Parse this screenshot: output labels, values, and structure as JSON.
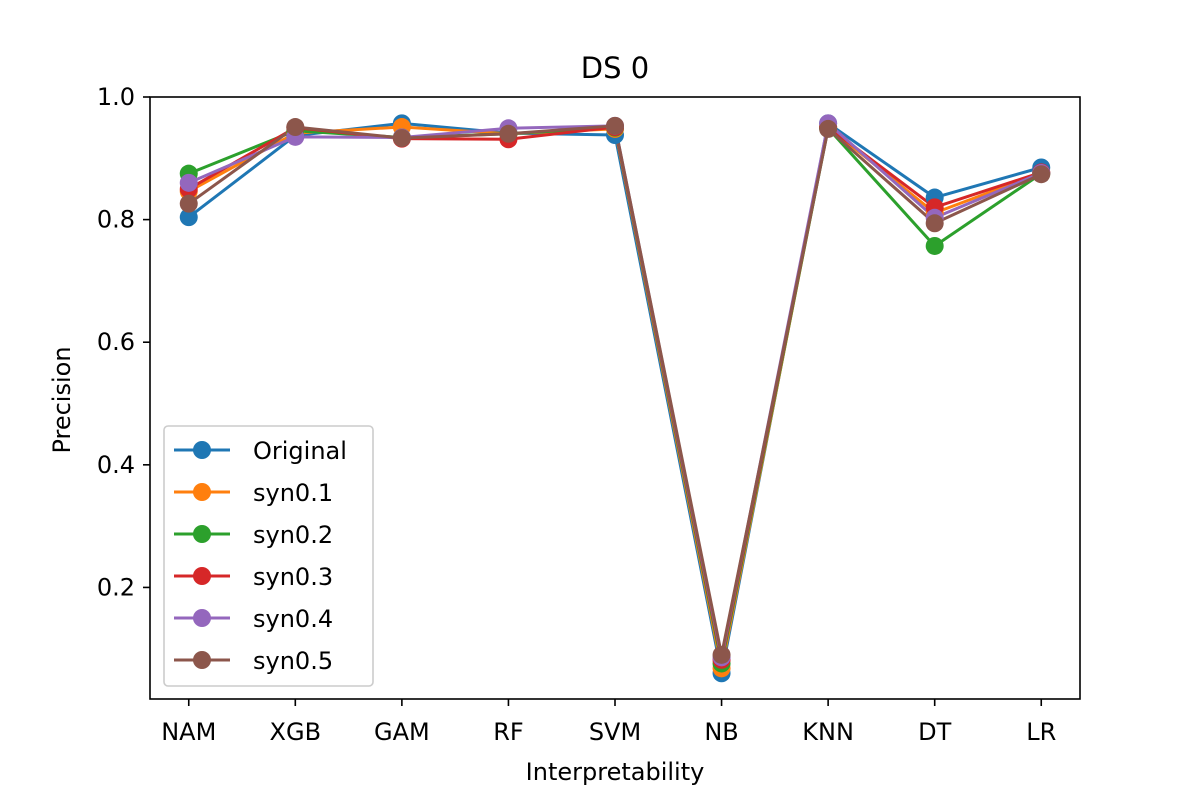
{
  "chart_data": {
    "type": "line",
    "title": "DS 0",
    "xlabel": "Interpretability",
    "ylabel": "Precision",
    "categories": [
      "NAM",
      "XGB",
      "GAM",
      "RF",
      "SVM",
      "NB",
      "KNN",
      "DT",
      "LR"
    ],
    "ylim": [
      0.018,
      1.0
    ],
    "yticks": [
      0.2,
      0.4,
      0.6,
      0.8,
      1.0
    ],
    "ytick_labels": [
      "0.2",
      "0.4",
      "0.6",
      "0.8",
      "1.0"
    ],
    "grid": false,
    "legend_position": "lower-left",
    "series": [
      {
        "name": "Original",
        "color": "#1f77b4",
        "values": [
          0.804,
          0.937,
          0.957,
          0.941,
          0.938,
          0.06,
          0.957,
          0.836,
          0.885
        ]
      },
      {
        "name": "syn0.1",
        "color": "#ff7f0e",
        "values": [
          0.846,
          0.941,
          0.951,
          0.94,
          0.948,
          0.068,
          0.951,
          0.811,
          0.876
        ]
      },
      {
        "name": "syn0.2",
        "color": "#2ca02c",
        "values": [
          0.875,
          0.945,
          0.934,
          0.94,
          0.95,
          0.076,
          0.949,
          0.757,
          0.875
        ]
      },
      {
        "name": "syn0.3",
        "color": "#d62728",
        "values": [
          0.85,
          0.95,
          0.932,
          0.931,
          0.951,
          0.082,
          0.951,
          0.82,
          0.877
        ]
      },
      {
        "name": "syn0.4",
        "color": "#9467bd",
        "values": [
          0.86,
          0.935,
          0.934,
          0.949,
          0.953,
          0.086,
          0.957,
          0.803,
          0.876
        ]
      },
      {
        "name": "syn0.5",
        "color": "#8c564b",
        "values": [
          0.826,
          0.951,
          0.933,
          0.94,
          0.953,
          0.09,
          0.948,
          0.794,
          0.874
        ]
      }
    ]
  }
}
